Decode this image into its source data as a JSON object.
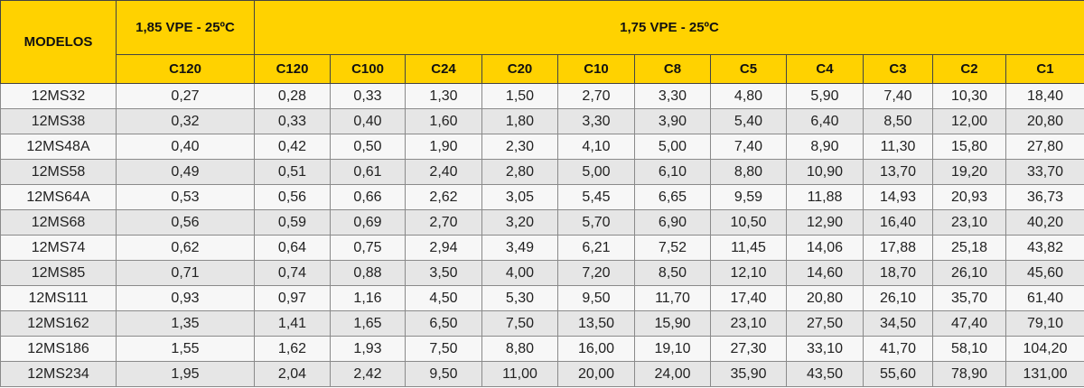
{
  "table": {
    "header": {
      "models": "MODELOS",
      "group1": "1,85 VPE - 25ºC",
      "group2": "1,75 VPE - 25ºC",
      "columns": [
        "C120",
        "C120",
        "C100",
        "C24",
        "C20",
        "C10",
        "C8",
        "C5",
        "C4",
        "C3",
        "C2",
        "C1"
      ]
    },
    "rows": [
      [
        "12MS32",
        "0,27",
        "0,28",
        "0,33",
        "1,30",
        "1,50",
        "2,70",
        "3,30",
        "4,80",
        "5,90",
        "7,40",
        "10,30",
        "18,40"
      ],
      [
        "12MS38",
        "0,32",
        "0,33",
        "0,40",
        "1,60",
        "1,80",
        "3,30",
        "3,90",
        "5,40",
        "6,40",
        "8,50",
        "12,00",
        "20,80"
      ],
      [
        "12MS48A",
        "0,40",
        "0,42",
        "0,50",
        "1,90",
        "2,30",
        "4,10",
        "5,00",
        "7,40",
        "8,90",
        "11,30",
        "15,80",
        "27,80"
      ],
      [
        "12MS58",
        "0,49",
        "0,51",
        "0,61",
        "2,40",
        "2,80",
        "5,00",
        "6,10",
        "8,80",
        "10,90",
        "13,70",
        "19,20",
        "33,70"
      ],
      [
        "12MS64A",
        "0,53",
        "0,56",
        "0,66",
        "2,62",
        "3,05",
        "5,45",
        "6,65",
        "9,59",
        "11,88",
        "14,93",
        "20,93",
        "36,73"
      ],
      [
        "12MS68",
        "0,56",
        "0,59",
        "0,69",
        "2,70",
        "3,20",
        "5,70",
        "6,90",
        "10,50",
        "12,90",
        "16,40",
        "23,10",
        "40,20"
      ],
      [
        "12MS74",
        "0,62",
        "0,64",
        "0,75",
        "2,94",
        "3,49",
        "6,21",
        "7,52",
        "11,45",
        "14,06",
        "17,88",
        "25,18",
        "43,82"
      ],
      [
        "12MS85",
        "0,71",
        "0,74",
        "0,88",
        "3,50",
        "4,00",
        "7,20",
        "8,50",
        "12,10",
        "14,60",
        "18,70",
        "26,10",
        "45,60"
      ],
      [
        "12MS111",
        "0,93",
        "0,97",
        "1,16",
        "4,50",
        "5,30",
        "9,50",
        "11,70",
        "17,40",
        "20,80",
        "26,10",
        "35,70",
        "61,40"
      ],
      [
        "12MS162",
        "1,35",
        "1,41",
        "1,65",
        "6,50",
        "7,50",
        "13,50",
        "15,90",
        "23,10",
        "27,50",
        "34,50",
        "47,40",
        "79,10"
      ],
      [
        "12MS186",
        "1,55",
        "1,62",
        "1,93",
        "7,50",
        "8,80",
        "16,00",
        "19,10",
        "27,30",
        "33,10",
        "41,70",
        "58,10",
        "104,20"
      ],
      [
        "12MS234",
        "1,95",
        "2,04",
        "2,42",
        "9,50",
        "11,00",
        "20,00",
        "24,00",
        "35,90",
        "43,50",
        "55,60",
        "78,90",
        "131,00"
      ]
    ]
  }
}
